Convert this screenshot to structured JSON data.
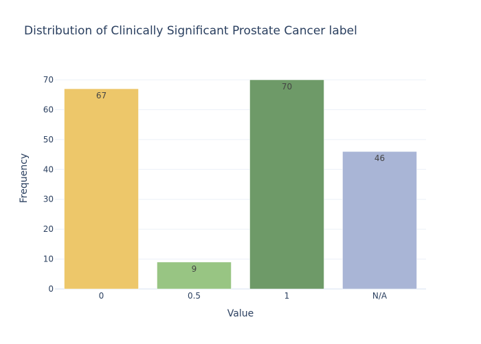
{
  "chart_data": {
    "type": "bar",
    "title": "Distribution of Clinically Significant Prostate Cancer label",
    "xlabel": "Value",
    "ylabel": "Frequency",
    "categories": [
      "0",
      "0.5",
      "1",
      "N/A"
    ],
    "values": [
      67,
      9,
      70,
      46
    ],
    "colors": [
      "#edc76a",
      "#98c583",
      "#6e9a68",
      "#a9b5d6"
    ],
    "ylim": [
      0,
      70
    ],
    "yticks": [
      0,
      10,
      20,
      30,
      40,
      50,
      60,
      70
    ],
    "grid": true,
    "legend": "none"
  }
}
